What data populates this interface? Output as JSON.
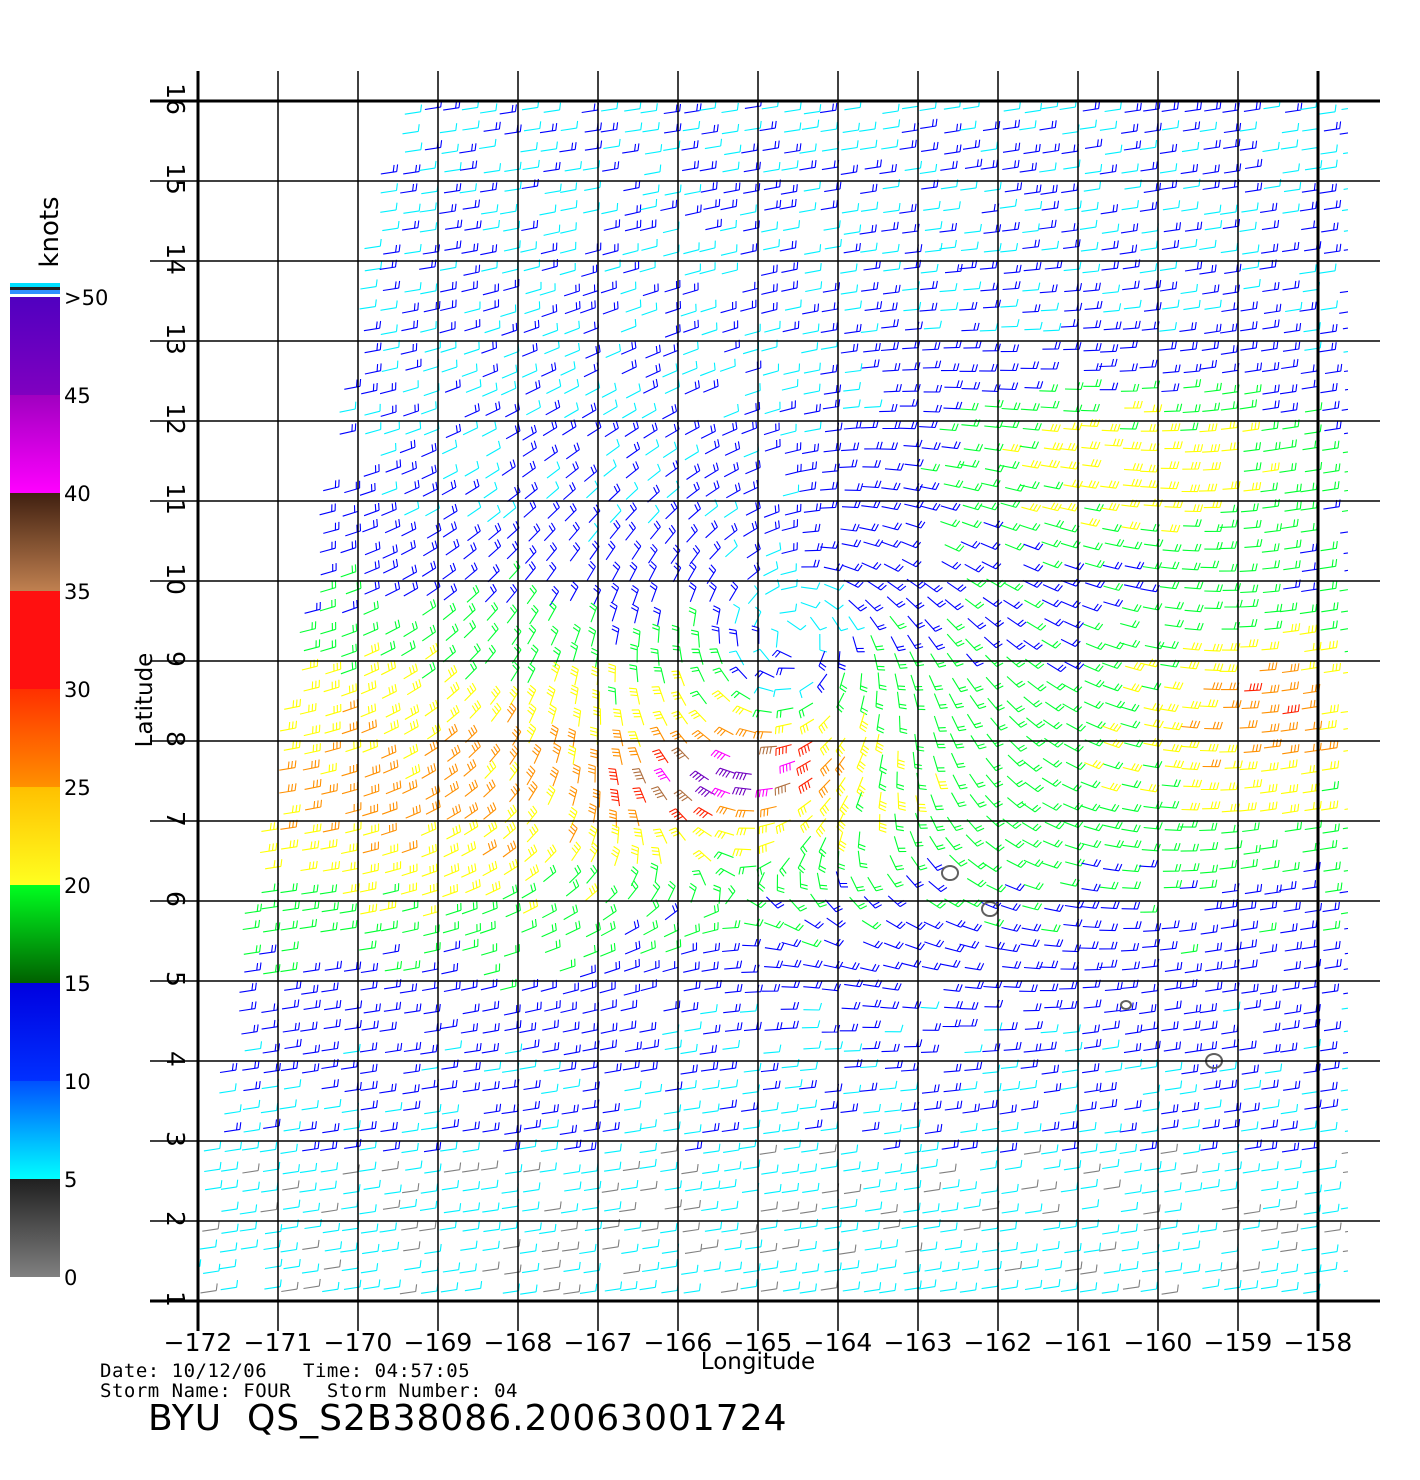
{
  "map": {
    "xlabel": "Longitude",
    "ylabel": "Latitude",
    "lon_ticks": [
      -172,
      -171,
      -170,
      -169,
      -168,
      -167,
      -166,
      -165,
      -164,
      -163,
      -162,
      -161,
      -160,
      -159,
      -158
    ],
    "lat_ticks": [
      1,
      2,
      3,
      4,
      5,
      6,
      7,
      8,
      9,
      10,
      11,
      12,
      13,
      14,
      15,
      16
    ],
    "lon_range": [
      -172,
      -157.6
    ],
    "lat_range": [
      1,
      16
    ],
    "storm_center": {
      "lon": -164.6,
      "lat": 9.3
    },
    "islands": [
      {
        "lon": -162.6,
        "lat": 6.35
      },
      {
        "lon": -162.1,
        "lat": 5.9
      },
      {
        "lon": -160.4,
        "lat": 4.7
      },
      {
        "lon": -159.3,
        "lat": 4.0
      }
    ]
  },
  "colorbar": {
    "unit_label": "knots",
    "tick_labels": [
      "0",
      "5",
      "10",
      "15",
      "20",
      "25",
      "30",
      "35",
      "40",
      "45",
      ">50"
    ],
    "colors": [
      "#808080",
      "#00f0ff",
      "#0000ff",
      "#00ff30",
      "#ffff00",
      "#ff9000",
      "#ff2000",
      "#b07040",
      "#ff00ff",
      "#7000c0"
    ]
  },
  "meta": {
    "date_label": "Date:",
    "date_value": "10/12/06",
    "time_label": "Time:",
    "time_value": "04:57:05",
    "storm_name_label": "Storm Name:",
    "storm_name_value": "FOUR",
    "storm_number_label": "Storm Number:",
    "storm_number_value": "04"
  },
  "title": "BYU  QS_S2B38086.20063001724"
}
